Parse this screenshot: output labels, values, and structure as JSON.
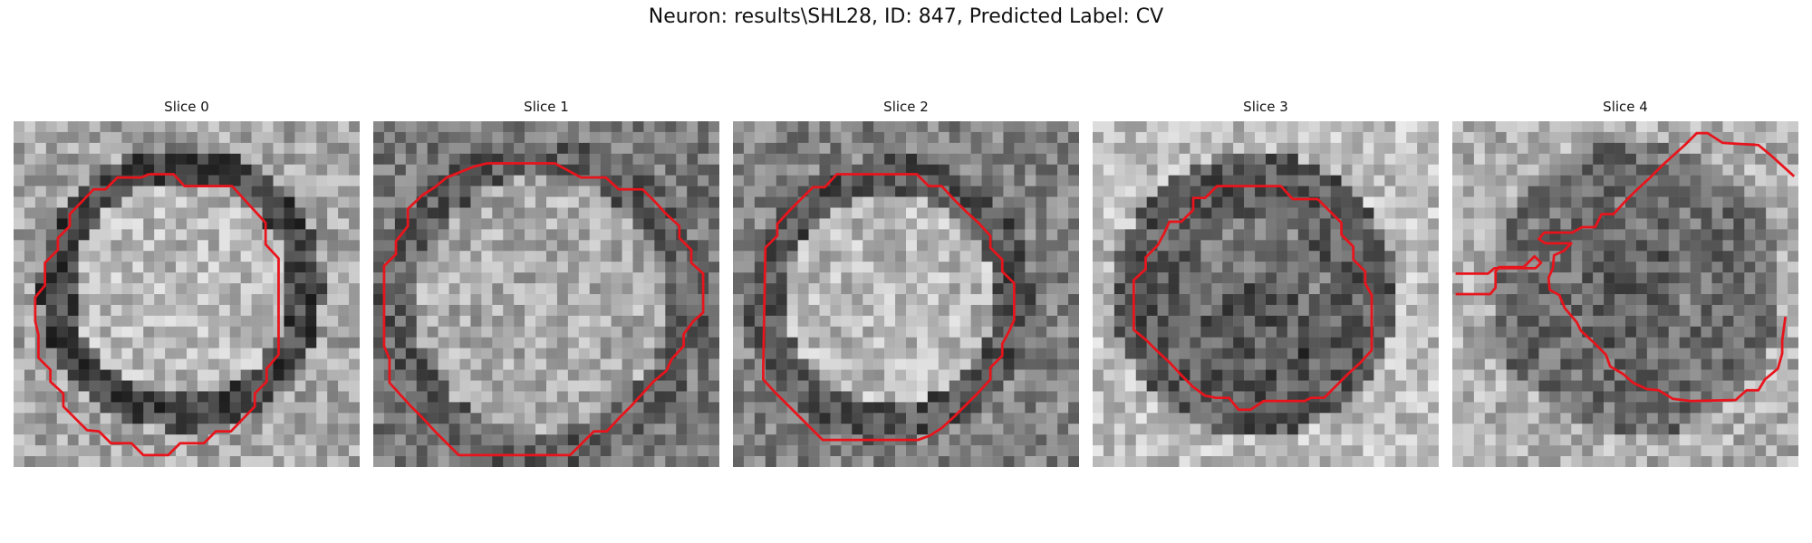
{
  "figure": {
    "title": "Neuron: results\\SHL28, ID: 847, Predicted Label: CV"
  },
  "colors": {
    "contour": "#e8141c",
    "background": "#ffffff"
  },
  "panels": [
    {
      "title": "Slice 0"
    },
    {
      "title": "Slice 1"
    },
    {
      "title": "Slice 2"
    },
    {
      "title": "Slice 3"
    },
    {
      "title": "Slice 4"
    }
  ]
}
